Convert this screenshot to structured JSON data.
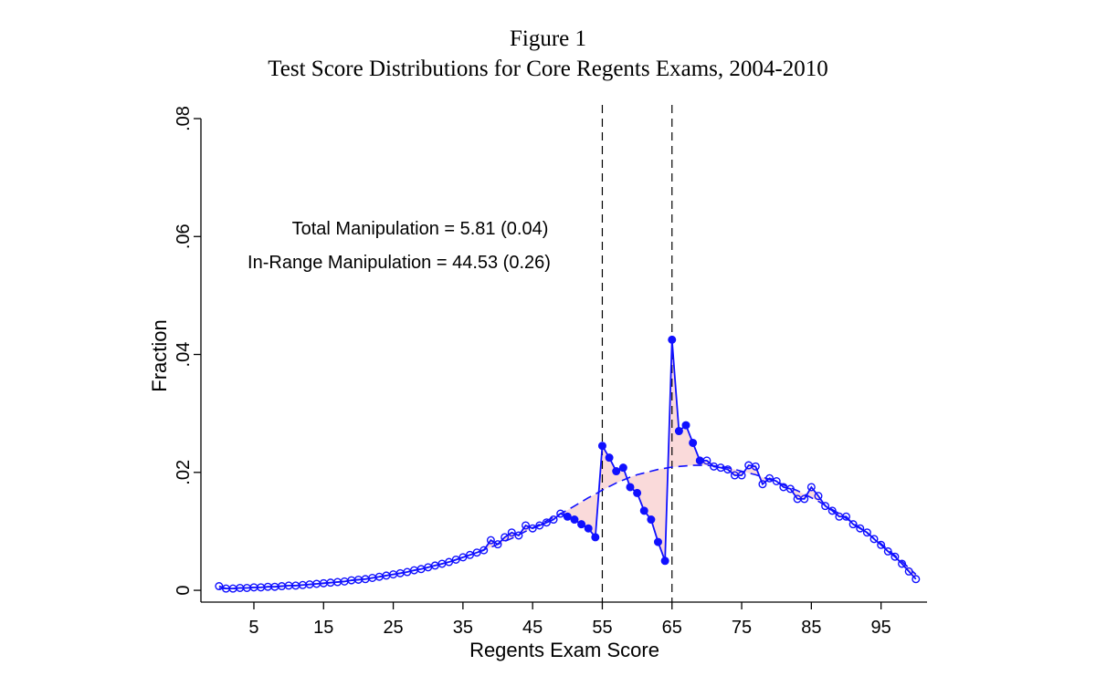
{
  "chart_data": {
    "type": "line",
    "title": "Figure 1",
    "subtitle": "Test Score Distributions for Core Regents Exams, 2004-2010",
    "x_label": "Regents Exam Score",
    "y_label": "Fraction",
    "annotations": [
      "Total Manipulation = 5.81 (0.04)",
      "In-Range Manipulation = 44.53 (0.26)"
    ],
    "xlim": [
      -2.6,
      101.6
    ],
    "ylim": [
      -0.002,
      0.08
    ],
    "xticks": [
      5,
      15,
      25,
      35,
      45,
      55,
      65,
      75,
      85,
      95
    ],
    "yticks": [
      0,
      {
        "value": 0.02,
        "label": ".02"
      },
      {
        "value": 0.04,
        "label": ".04"
      },
      {
        "value": 0.06,
        "label": ".06"
      },
      {
        "value": 0.08,
        "label": ".08"
      }
    ],
    "vlines": [
      55,
      65
    ],
    "shade_color": "#fadada",
    "x": [
      0,
      1,
      2,
      3,
      4,
      5,
      6,
      7,
      8,
      9,
      10,
      11,
      12,
      13,
      14,
      15,
      16,
      17,
      18,
      19,
      20,
      21,
      22,
      23,
      24,
      25,
      26,
      27,
      28,
      29,
      30,
      31,
      32,
      33,
      34,
      35,
      36,
      37,
      38,
      39,
      40,
      41,
      42,
      43,
      44,
      45,
      46,
      47,
      48,
      49,
      50,
      51,
      52,
      53,
      54,
      55,
      56,
      57,
      58,
      59,
      60,
      61,
      62,
      63,
      64,
      65,
      66,
      67,
      68,
      69,
      70,
      71,
      72,
      73,
      74,
      75,
      76,
      77,
      78,
      79,
      80,
      81,
      82,
      83,
      84,
      85,
      86,
      87,
      88,
      89,
      90,
      91,
      92,
      93,
      94,
      95,
      96,
      97,
      98,
      99,
      100
    ],
    "series": [
      {
        "color": "#1010ff",
        "marker": true,
        "filled_from": 50,
        "filled_to": 69,
        "values": [
          0.0007,
          0.0003,
          0.0003,
          0.0004,
          0.0004,
          0.0005,
          0.0005,
          0.0006,
          0.0006,
          0.0007,
          0.0008,
          0.0008,
          0.0009,
          0.001,
          0.0011,
          0.0012,
          0.0013,
          0.0014,
          0.0015,
          0.0017,
          0.0018,
          0.0019,
          0.0021,
          0.0023,
          0.0025,
          0.0027,
          0.0029,
          0.0031,
          0.0034,
          0.0036,
          0.0039,
          0.0042,
          0.0045,
          0.0048,
          0.0052,
          0.0056,
          0.006,
          0.0064,
          0.0068,
          0.0085,
          0.0078,
          0.009,
          0.0098,
          0.0093,
          0.011,
          0.0105,
          0.011,
          0.0115,
          0.012,
          0.013,
          0.0125,
          0.012,
          0.0112,
          0.0105,
          0.009,
          0.0245,
          0.0225,
          0.0202,
          0.0208,
          0.0175,
          0.0165,
          0.0135,
          0.012,
          0.0082,
          0.005,
          0.0425,
          0.027,
          0.028,
          0.025,
          0.022,
          0.022,
          0.021,
          0.0208,
          0.0205,
          0.0195,
          0.0195,
          0.0212,
          0.021,
          0.018,
          0.019,
          0.0185,
          0.0175,
          0.0172,
          0.0155,
          0.0155,
          0.0175,
          0.016,
          0.0143,
          0.0135,
          0.0125,
          0.0125,
          0.0112,
          0.0105,
          0.0098,
          0.0087,
          0.0077,
          0.0066,
          0.0057,
          0.0045,
          0.0032,
          0.0019
        ]
      },
      {
        "color": "#1010ff",
        "dashed": true,
        "values": [
          0.0003,
          0.0003,
          0.0003,
          0.0004,
          0.0004,
          0.0005,
          0.0005,
          0.0006,
          0.0006,
          0.0007,
          0.0008,
          0.0008,
          0.0009,
          0.001,
          0.0011,
          0.0012,
          0.0013,
          0.0014,
          0.0015,
          0.0017,
          0.0018,
          0.0019,
          0.0021,
          0.0023,
          0.0025,
          0.0027,
          0.0029,
          0.0031,
          0.0034,
          0.0036,
          0.0039,
          0.0042,
          0.0045,
          0.0048,
          0.0052,
          0.0056,
          0.006,
          0.0064,
          0.0069,
          0.0073,
          0.0078,
          0.0083,
          0.0088,
          0.0094,
          0.01,
          0.0106,
          0.0112,
          0.0118,
          0.0124,
          0.013,
          0.0136,
          0.0143,
          0.015,
          0.0157,
          0.0163,
          0.017,
          0.0176,
          0.0182,
          0.0187,
          0.0192,
          0.0196,
          0.0199,
          0.0202,
          0.0205,
          0.0207,
          0.0209,
          0.021,
          0.0211,
          0.0212,
          0.0212,
          0.0212,
          0.0211,
          0.021,
          0.0208,
          0.0205,
          0.0202,
          0.0199,
          0.0196,
          0.0192,
          0.0188,
          0.0184,
          0.0179,
          0.0174,
          0.0169,
          0.0163,
          0.0157,
          0.0151,
          0.0144,
          0.0137,
          0.013,
          0.0122,
          0.0114,
          0.0106,
          0.0097,
          0.0088,
          0.0079,
          0.0069,
          0.0059,
          0.0049,
          0.0038,
          0.0027
        ]
      }
    ]
  }
}
